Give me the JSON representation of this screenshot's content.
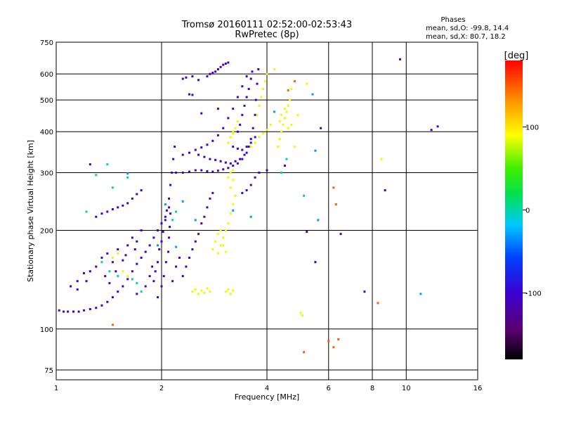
{
  "chart_data": {
    "type": "scatter",
    "title": "Tromsø 20160111 02:52:00-02:53:43",
    "subtitle": "RwPretec (8p)",
    "xlabel": "Frequency [MHz]",
    "ylabel": "Stationary phase Virtual Height [km]",
    "x_scale": "log",
    "y_scale": "log",
    "xlim": [
      1,
      16
    ],
    "ylim": [
      70,
      750
    ],
    "x_ticks": [
      1,
      2,
      4,
      6,
      8,
      10,
      16
    ],
    "y_ticks": [
      75,
      100,
      200,
      300,
      400,
      500,
      600,
      750
    ],
    "grid": true,
    "stats": {
      "heading": "Phases",
      "line_o": "mean, sd,O: -99.8, 14.4",
      "line_x": "mean, sd,X:  80.7, 18.2"
    },
    "colorbar": {
      "label": "[deg]",
      "range": [
        -180,
        180
      ],
      "ticks": [
        100,
        0,
        -100
      ],
      "colormap": "rainbow (black-purple-blue-cyan-green-yellow-red)"
    },
    "series": [
      {
        "mode": "O",
        "phase_deg": -110,
        "points": [
          [
            1.02,
            114
          ],
          [
            1.05,
            113
          ],
          [
            1.08,
            113
          ],
          [
            1.12,
            113
          ],
          [
            1.16,
            113
          ],
          [
            1.2,
            114
          ],
          [
            1.25,
            115
          ],
          [
            1.3,
            116
          ],
          [
            1.35,
            118
          ],
          [
            1.4,
            121
          ],
          [
            1.45,
            125
          ],
          [
            1.5,
            130
          ],
          [
            1.55,
            135
          ],
          [
            1.6,
            142
          ],
          [
            1.65,
            150
          ],
          [
            1.7,
            158
          ],
          [
            1.75,
            165
          ],
          [
            1.8,
            172
          ],
          [
            1.85,
            180
          ],
          [
            1.9,
            190
          ],
          [
            1.95,
            200
          ],
          [
            2.0,
            210
          ],
          [
            2.05,
            220
          ],
          [
            2.1,
            235
          ],
          [
            1.1,
            135
          ],
          [
            1.15,
            140
          ],
          [
            1.2,
            148
          ],
          [
            1.25,
            150
          ],
          [
            1.3,
            155
          ],
          [
            1.35,
            165
          ],
          [
            1.4,
            170
          ],
          [
            1.45,
            160
          ],
          [
            1.5,
            175
          ],
          [
            1.55,
            162
          ],
          [
            1.6,
            180
          ],
          [
            1.65,
            190
          ],
          [
            1.7,
            185
          ],
          [
            1.75,
            200
          ],
          [
            1.3,
            220
          ],
          [
            1.35,
            225
          ],
          [
            1.4,
            228
          ],
          [
            1.45,
            232
          ],
          [
            1.5,
            235
          ],
          [
            1.55,
            238
          ],
          [
            1.6,
            242
          ],
          [
            1.65,
            250
          ],
          [
            1.7,
            258
          ],
          [
            1.75,
            265
          ],
          [
            1.9,
            140
          ],
          [
            1.92,
            150
          ],
          [
            1.95,
            160
          ],
          [
            1.97,
            175
          ],
          [
            2.0,
            185
          ],
          [
            2.02,
            198
          ],
          [
            2.05,
            215
          ],
          [
            2.07,
            230
          ],
          [
            2.1,
            250
          ],
          [
            2.12,
            275
          ],
          [
            2.14,
            300
          ],
          [
            2.16,
            330
          ],
          [
            2.18,
            360
          ],
          [
            1.95,
            125
          ],
          [
            2.0,
            135
          ],
          [
            2.03,
            145
          ],
          [
            2.06,
            160
          ],
          [
            2.09,
            172
          ],
          [
            2.1,
            190
          ],
          [
            2.11,
            205
          ],
          [
            2.12,
            225
          ],
          [
            2.3,
            145
          ],
          [
            2.35,
            155
          ],
          [
            2.4,
            165
          ],
          [
            2.45,
            175
          ],
          [
            2.5,
            185
          ],
          [
            2.55,
            195
          ],
          [
            2.6,
            210
          ],
          [
            2.65,
            220
          ],
          [
            2.7,
            235
          ],
          [
            2.75,
            250
          ],
          [
            2.8,
            260
          ],
          [
            2.2,
            300
          ],
          [
            2.3,
            300
          ],
          [
            2.4,
            302
          ],
          [
            2.5,
            305
          ],
          [
            2.6,
            305
          ],
          [
            2.7,
            303
          ],
          [
            2.8,
            302
          ],
          [
            2.9,
            304
          ],
          [
            3.0,
            307
          ],
          [
            3.1,
            310
          ],
          [
            3.2,
            315
          ],
          [
            3.3,
            320
          ],
          [
            3.4,
            330
          ],
          [
            3.5,
            345
          ],
          [
            3.55,
            360
          ],
          [
            3.6,
            380
          ],
          [
            3.65,
            410
          ],
          [
            3.7,
            450
          ],
          [
            3.72,
            500
          ],
          [
            3.75,
            560
          ],
          [
            3.78,
            620
          ],
          [
            2.3,
            340
          ],
          [
            2.4,
            345
          ],
          [
            2.5,
            352
          ],
          [
            2.6,
            358
          ],
          [
            2.7,
            365
          ],
          [
            2.8,
            375
          ],
          [
            2.9,
            390
          ],
          [
            3.0,
            410
          ],
          [
            3.1,
            440
          ],
          [
            3.2,
            470
          ],
          [
            3.3,
            510
          ],
          [
            3.4,
            550
          ],
          [
            3.5,
            590
          ],
          [
            2.7,
            590
          ],
          [
            2.75,
            600
          ],
          [
            2.8,
            605
          ],
          [
            2.85,
            610
          ],
          [
            2.9,
            620
          ],
          [
            2.95,
            630
          ],
          [
            3.0,
            640
          ],
          [
            3.05,
            645
          ],
          [
            3.1,
            650
          ],
          [
            2.3,
            580
          ],
          [
            2.35,
            585
          ],
          [
            2.45,
            590
          ],
          [
            2.55,
            575
          ],
          [
            2.4,
            520
          ],
          [
            2.45,
            518
          ],
          [
            3.3,
            400
          ],
          [
            3.35,
            420
          ],
          [
            3.4,
            450
          ],
          [
            3.45,
            480
          ],
          [
            3.5,
            510
          ],
          [
            3.55,
            540
          ],
          [
            3.6,
            580
          ],
          [
            3.63,
            610
          ],
          [
            3.2,
            360
          ],
          [
            3.3,
            355
          ],
          [
            3.4,
            352
          ],
          [
            3.5,
            360
          ],
          [
            3.6,
            370
          ],
          [
            3.7,
            385
          ],
          [
            3.4,
            260
          ],
          [
            3.5,
            265
          ],
          [
            3.6,
            275
          ],
          [
            3.7,
            290
          ],
          [
            3.8,
            300
          ],
          [
            1.25,
            318
          ],
          [
            2.9,
            470
          ],
          [
            2.6,
            455
          ],
          [
            4.0,
            305
          ],
          [
            4.5,
            315
          ],
          [
            5.7,
            410
          ],
          [
            5.2,
            198
          ],
          [
            5.5,
            160
          ],
          [
            6.5,
            195
          ],
          [
            7.6,
            130
          ],
          [
            8.7,
            265
          ],
          [
            9.6,
            665
          ],
          [
            12.3,
            415
          ],
          [
            11.8,
            405
          ],
          [
            1.7,
            128
          ],
          [
            1.8,
            135
          ],
          [
            1.85,
            145
          ],
          [
            1.88,
            155
          ],
          [
            2.15,
            140
          ],
          [
            2.2,
            155
          ],
          [
            2.25,
            165
          ],
          [
            1.15,
            132
          ],
          [
            1.22,
            140
          ],
          [
            1.38,
            145
          ],
          [
            1.42,
            138
          ],
          [
            1.48,
            150
          ],
          [
            1.58,
            168
          ],
          [
            1.68,
            175
          ],
          [
            2.55,
            340
          ],
          [
            2.65,
            335
          ],
          [
            2.75,
            330
          ],
          [
            2.85,
            328
          ],
          [
            2.95,
            325
          ],
          [
            3.05,
            322
          ],
          [
            3.15,
            320
          ],
          [
            3.25,
            325
          ],
          [
            3.35,
            330
          ],
          [
            3.45,
            340
          ]
        ]
      },
      {
        "mode": "X",
        "phase_deg": 85,
        "points": [
          [
            2.45,
            130
          ],
          [
            2.5,
            132
          ],
          [
            2.55,
            128
          ],
          [
            2.6,
            131
          ],
          [
            2.65,
            129
          ],
          [
            2.7,
            133
          ],
          [
            2.75,
            130
          ],
          [
            2.9,
            170
          ],
          [
            2.95,
            180
          ],
          [
            3.0,
            190
          ],
          [
            3.05,
            200
          ],
          [
            3.1,
            210
          ],
          [
            3.15,
            225
          ],
          [
            3.2,
            240
          ],
          [
            3.25,
            255
          ],
          [
            2.8,
            175
          ],
          [
            2.85,
            185
          ],
          [
            2.9,
            195
          ],
          [
            2.95,
            200
          ],
          [
            3.0,
            180
          ],
          [
            3.05,
            172
          ],
          [
            3.05,
            130
          ],
          [
            3.1,
            132
          ],
          [
            3.15,
            128
          ],
          [
            3.2,
            131
          ],
          [
            3.1,
            290
          ],
          [
            3.15,
            300
          ],
          [
            3.2,
            305
          ],
          [
            3.15,
            270
          ],
          [
            3.2,
            285
          ],
          [
            3.1,
            370
          ],
          [
            3.15,
            385
          ],
          [
            3.2,
            395
          ],
          [
            3.25,
            410
          ],
          [
            3.3,
            430
          ],
          [
            3.2,
            400
          ],
          [
            3.6,
            360
          ],
          [
            3.7,
            370
          ],
          [
            3.8,
            385
          ],
          [
            3.9,
            395
          ],
          [
            4.0,
            405
          ],
          [
            4.1,
            420
          ],
          [
            3.75,
            450
          ],
          [
            3.8,
            480
          ],
          [
            3.85,
            510
          ],
          [
            3.9,
            540
          ],
          [
            3.95,
            570
          ],
          [
            4.0,
            600
          ],
          [
            4.3,
            360
          ],
          [
            4.35,
            380
          ],
          [
            4.4,
            400
          ],
          [
            4.45,
            420
          ],
          [
            4.5,
            440
          ],
          [
            4.55,
            460
          ],
          [
            4.6,
            480
          ],
          [
            4.65,
            500
          ],
          [
            4.35,
            430
          ],
          [
            4.4,
            450
          ],
          [
            4.5,
            470
          ],
          [
            4.6,
            410
          ],
          [
            4.7,
            420
          ],
          [
            4.8,
            360
          ],
          [
            5.0,
            112
          ],
          [
            5.05,
            110
          ],
          [
            1.5,
            170
          ],
          [
            1.45,
            165
          ],
          [
            1.55,
            150
          ],
          [
            1.6,
            145
          ],
          [
            4.7,
            540
          ],
          [
            4.9,
            450
          ],
          [
            5.2,
            560
          ],
          [
            8.5,
            330
          ],
          [
            4.2,
            620
          ]
        ]
      },
      {
        "mode": "other",
        "phase_deg": 5,
        "points": [
          [
            1.3,
            295
          ],
          [
            1.4,
            318
          ],
          [
            1.45,
            270
          ],
          [
            1.6,
            290
          ],
          [
            1.35,
            160
          ],
          [
            1.42,
            150
          ],
          [
            1.5,
            145
          ],
          [
            1.22,
            228
          ],
          [
            1.65,
            142
          ],
          [
            1.7,
            138
          ],
          [
            1.75,
            130
          ],
          [
            2.15,
            215
          ],
          [
            2.2,
            228
          ],
          [
            4.55,
            330
          ],
          [
            4.4,
            300
          ],
          [
            5.1,
            255
          ]
        ]
      },
      {
        "mode": "other",
        "phase_deg": 150,
        "points": [
          [
            6.2,
            270
          ],
          [
            6.3,
            240
          ],
          [
            6.0,
            92
          ],
          [
            6.4,
            93
          ],
          [
            6.2,
            88
          ],
          [
            8.3,
            120
          ],
          [
            1.45,
            103
          ],
          [
            5.1,
            85
          ],
          [
            4.6,
            535
          ],
          [
            4.8,
            570
          ]
        ]
      },
      {
        "mode": "other",
        "phase_deg": -40,
        "points": [
          [
            1.6,
            298
          ],
          [
            2.05,
            240
          ],
          [
            2.3,
            245
          ],
          [
            2.5,
            215
          ],
          [
            3.2,
            230
          ],
          [
            4.2,
            460
          ],
          [
            5.4,
            520
          ],
          [
            5.5,
            350
          ],
          [
            5.6,
            215
          ],
          [
            11.0,
            128
          ],
          [
            3.6,
            220
          ],
          [
            1.95,
            180
          ],
          [
            2.2,
            178
          ]
        ]
      }
    ]
  }
}
